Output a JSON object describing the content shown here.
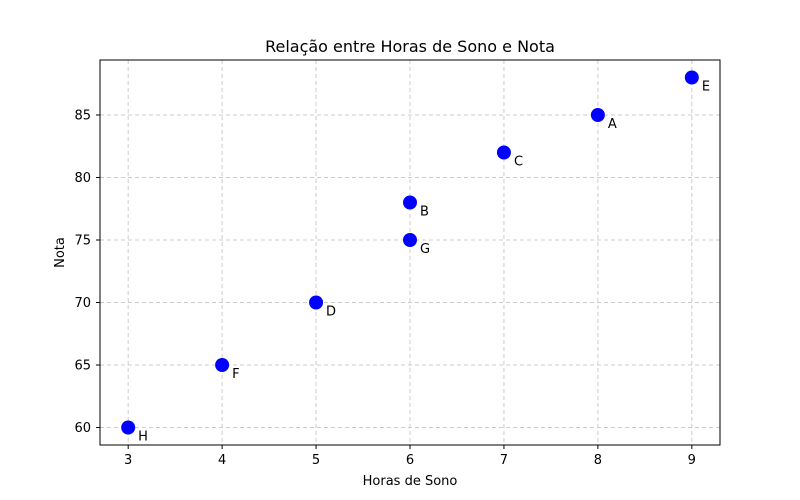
{
  "chart_data": {
    "type": "scatter",
    "title": "Relação entre Horas de Sono e Nota",
    "xlabel": "Horas de Sono",
    "ylabel": "Nota",
    "xlim": [
      2.7,
      9.3
    ],
    "ylim": [
      58.6,
      89.4
    ],
    "xticks": [
      3,
      4,
      5,
      6,
      7,
      8,
      9
    ],
    "yticks": [
      60,
      65,
      70,
      75,
      80,
      85
    ],
    "grid": true,
    "point_color": "#0000ff",
    "points": [
      {
        "label": "A",
        "x": 8,
        "y": 85
      },
      {
        "label": "B",
        "x": 6,
        "y": 78
      },
      {
        "label": "C",
        "x": 7,
        "y": 82
      },
      {
        "label": "D",
        "x": 5,
        "y": 70
      },
      {
        "label": "E",
        "x": 9,
        "y": 88
      },
      {
        "label": "F",
        "x": 4,
        "y": 65
      },
      {
        "label": "G",
        "x": 6,
        "y": 75
      },
      {
        "label": "H",
        "x": 3,
        "y": 60
      }
    ]
  }
}
